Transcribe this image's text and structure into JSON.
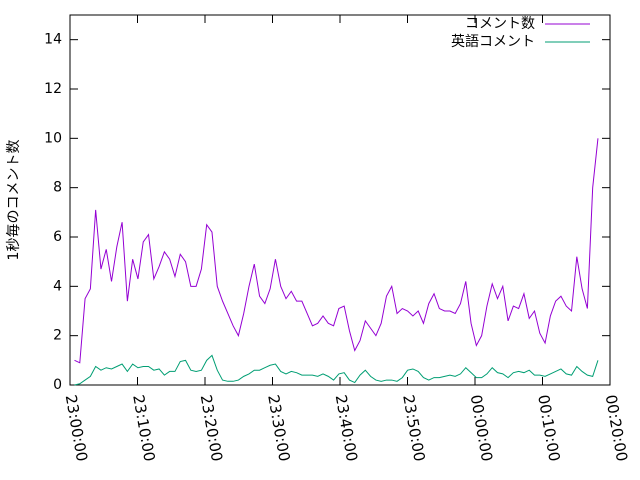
{
  "chart_data": {
    "type": "line",
    "ylabel": "1秒毎のコメント数",
    "x": [
      "23:00:40",
      "23:01:27",
      "23:02:14",
      "23:03:01",
      "23:03:48",
      "23:04:35",
      "23:05:22",
      "23:06:09",
      "23:06:56",
      "23:07:43",
      "23:08:30",
      "23:09:17",
      "23:10:04",
      "23:10:51",
      "23:11:38",
      "23:12:25",
      "23:13:12",
      "23:13:59",
      "23:14:46",
      "23:15:33",
      "23:16:20",
      "23:17:07",
      "23:17:54",
      "23:18:41",
      "23:19:28",
      "23:20:15",
      "23:21:02",
      "23:21:49",
      "23:22:36",
      "23:23:23",
      "23:24:10",
      "23:24:57",
      "23:25:44",
      "23:26:31",
      "23:27:18",
      "23:28:05",
      "23:28:52",
      "23:29:39",
      "23:30:26",
      "23:31:13",
      "23:32:00",
      "23:32:47",
      "23:33:34",
      "23:34:21",
      "23:35:08",
      "23:35:55",
      "23:36:42",
      "23:37:29",
      "23:38:16",
      "23:39:03",
      "23:39:50",
      "23:40:37",
      "23:41:24",
      "23:42:11",
      "23:42:58",
      "23:43:45",
      "23:44:32",
      "23:45:19",
      "23:46:06",
      "23:46:53",
      "23:47:40",
      "23:48:27",
      "23:49:14",
      "23:50:01",
      "23:50:48",
      "23:51:35",
      "23:52:22",
      "23:53:09",
      "23:53:56",
      "23:54:43",
      "23:55:30",
      "23:56:17",
      "23:57:04",
      "23:57:51",
      "23:58:38",
      "23:59:25",
      "00:00:12",
      "00:00:59",
      "00:01:46",
      "00:02:33",
      "00:03:20",
      "00:04:07",
      "00:04:54",
      "00:05:41",
      "00:06:28",
      "00:07:15",
      "00:08:02",
      "00:08:49",
      "00:09:36",
      "00:10:23",
      "00:11:10",
      "00:11:57",
      "00:12:44",
      "00:13:31",
      "00:14:18",
      "00:15:05",
      "00:15:52",
      "00:16:39",
      "00:17:26",
      "00:18:13"
    ],
    "series": [
      {
        "name": "コメント数",
        "color": "#9400d3",
        "values": [
          1.0,
          0.9,
          3.5,
          3.9,
          7.1,
          4.7,
          5.5,
          4.2,
          5.6,
          6.6,
          3.4,
          5.1,
          4.3,
          5.8,
          6.1,
          4.3,
          4.8,
          5.4,
          5.1,
          4.4,
          5.3,
          5.0,
          4.0,
          4.0,
          4.7,
          6.5,
          6.2,
          4.0,
          3.4,
          2.9,
          2.4,
          2.0,
          2.9,
          4.0,
          4.9,
          3.6,
          3.3,
          3.9,
          5.1,
          4.0,
          3.5,
          3.8,
          3.4,
          3.4,
          2.9,
          2.4,
          2.5,
          2.8,
          2.5,
          2.4,
          3.1,
          3.2,
          2.2,
          1.4,
          1.8,
          2.6,
          2.3,
          2.0,
          2.5,
          3.6,
          4.0,
          2.9,
          3.1,
          3.0,
          2.8,
          3.0,
          2.5,
          3.3,
          3.7,
          3.1,
          3.0,
          3.0,
          2.9,
          3.3,
          4.2,
          2.5,
          1.6,
          2.0,
          3.2,
          4.1,
          3.5,
          4.0,
          2.6,
          3.2,
          3.1,
          3.7,
          2.7,
          3.0,
          2.1,
          1.7,
          2.8,
          3.4,
          3.6,
          3.2,
          3.0,
          5.2,
          3.9,
          3.1,
          8.0,
          10.0
        ]
      },
      {
        "name": "英語コメント",
        "color": "#009e73",
        "values": [
          0,
          0.05,
          0.2,
          0.35,
          0.75,
          0.6,
          0.7,
          0.65,
          0.75,
          0.85,
          0.55,
          0.85,
          0.7,
          0.75,
          0.75,
          0.6,
          0.65,
          0.4,
          0.55,
          0.55,
          0.95,
          1.0,
          0.6,
          0.55,
          0.6,
          1.0,
          1.2,
          0.6,
          0.2,
          0.15,
          0.15,
          0.2,
          0.35,
          0.45,
          0.6,
          0.6,
          0.7,
          0.8,
          0.85,
          0.55,
          0.45,
          0.55,
          0.5,
          0.4,
          0.4,
          0.4,
          0.35,
          0.45,
          0.35,
          0.2,
          0.45,
          0.5,
          0.2,
          0.1,
          0.4,
          0.6,
          0.35,
          0.2,
          0.15,
          0.2,
          0.2,
          0.15,
          0.3,
          0.6,
          0.65,
          0.55,
          0.3,
          0.2,
          0.3,
          0.3,
          0.35,
          0.4,
          0.35,
          0.45,
          0.7,
          0.5,
          0.3,
          0.3,
          0.45,
          0.7,
          0.5,
          0.45,
          0.3,
          0.5,
          0.55,
          0.5,
          0.6,
          0.4,
          0.4,
          0.35,
          0.45,
          0.55,
          0.65,
          0.45,
          0.4,
          0.75,
          0.55,
          0.4,
          0.35,
          1.0
        ]
      }
    ],
    "xlim": [
      "23:00:00",
      "00:20:00"
    ],
    "xticks": [
      "23:00:00",
      "23:10:00",
      "23:20:00",
      "23:30:00",
      "23:40:00",
      "23:50:00",
      "00:00:00",
      "00:10:00",
      "00:20:00"
    ],
    "ylim": [
      0,
      15
    ],
    "yticks": [
      0,
      2,
      4,
      6,
      8,
      10,
      12,
      14
    ],
    "legend": "upper right"
  }
}
